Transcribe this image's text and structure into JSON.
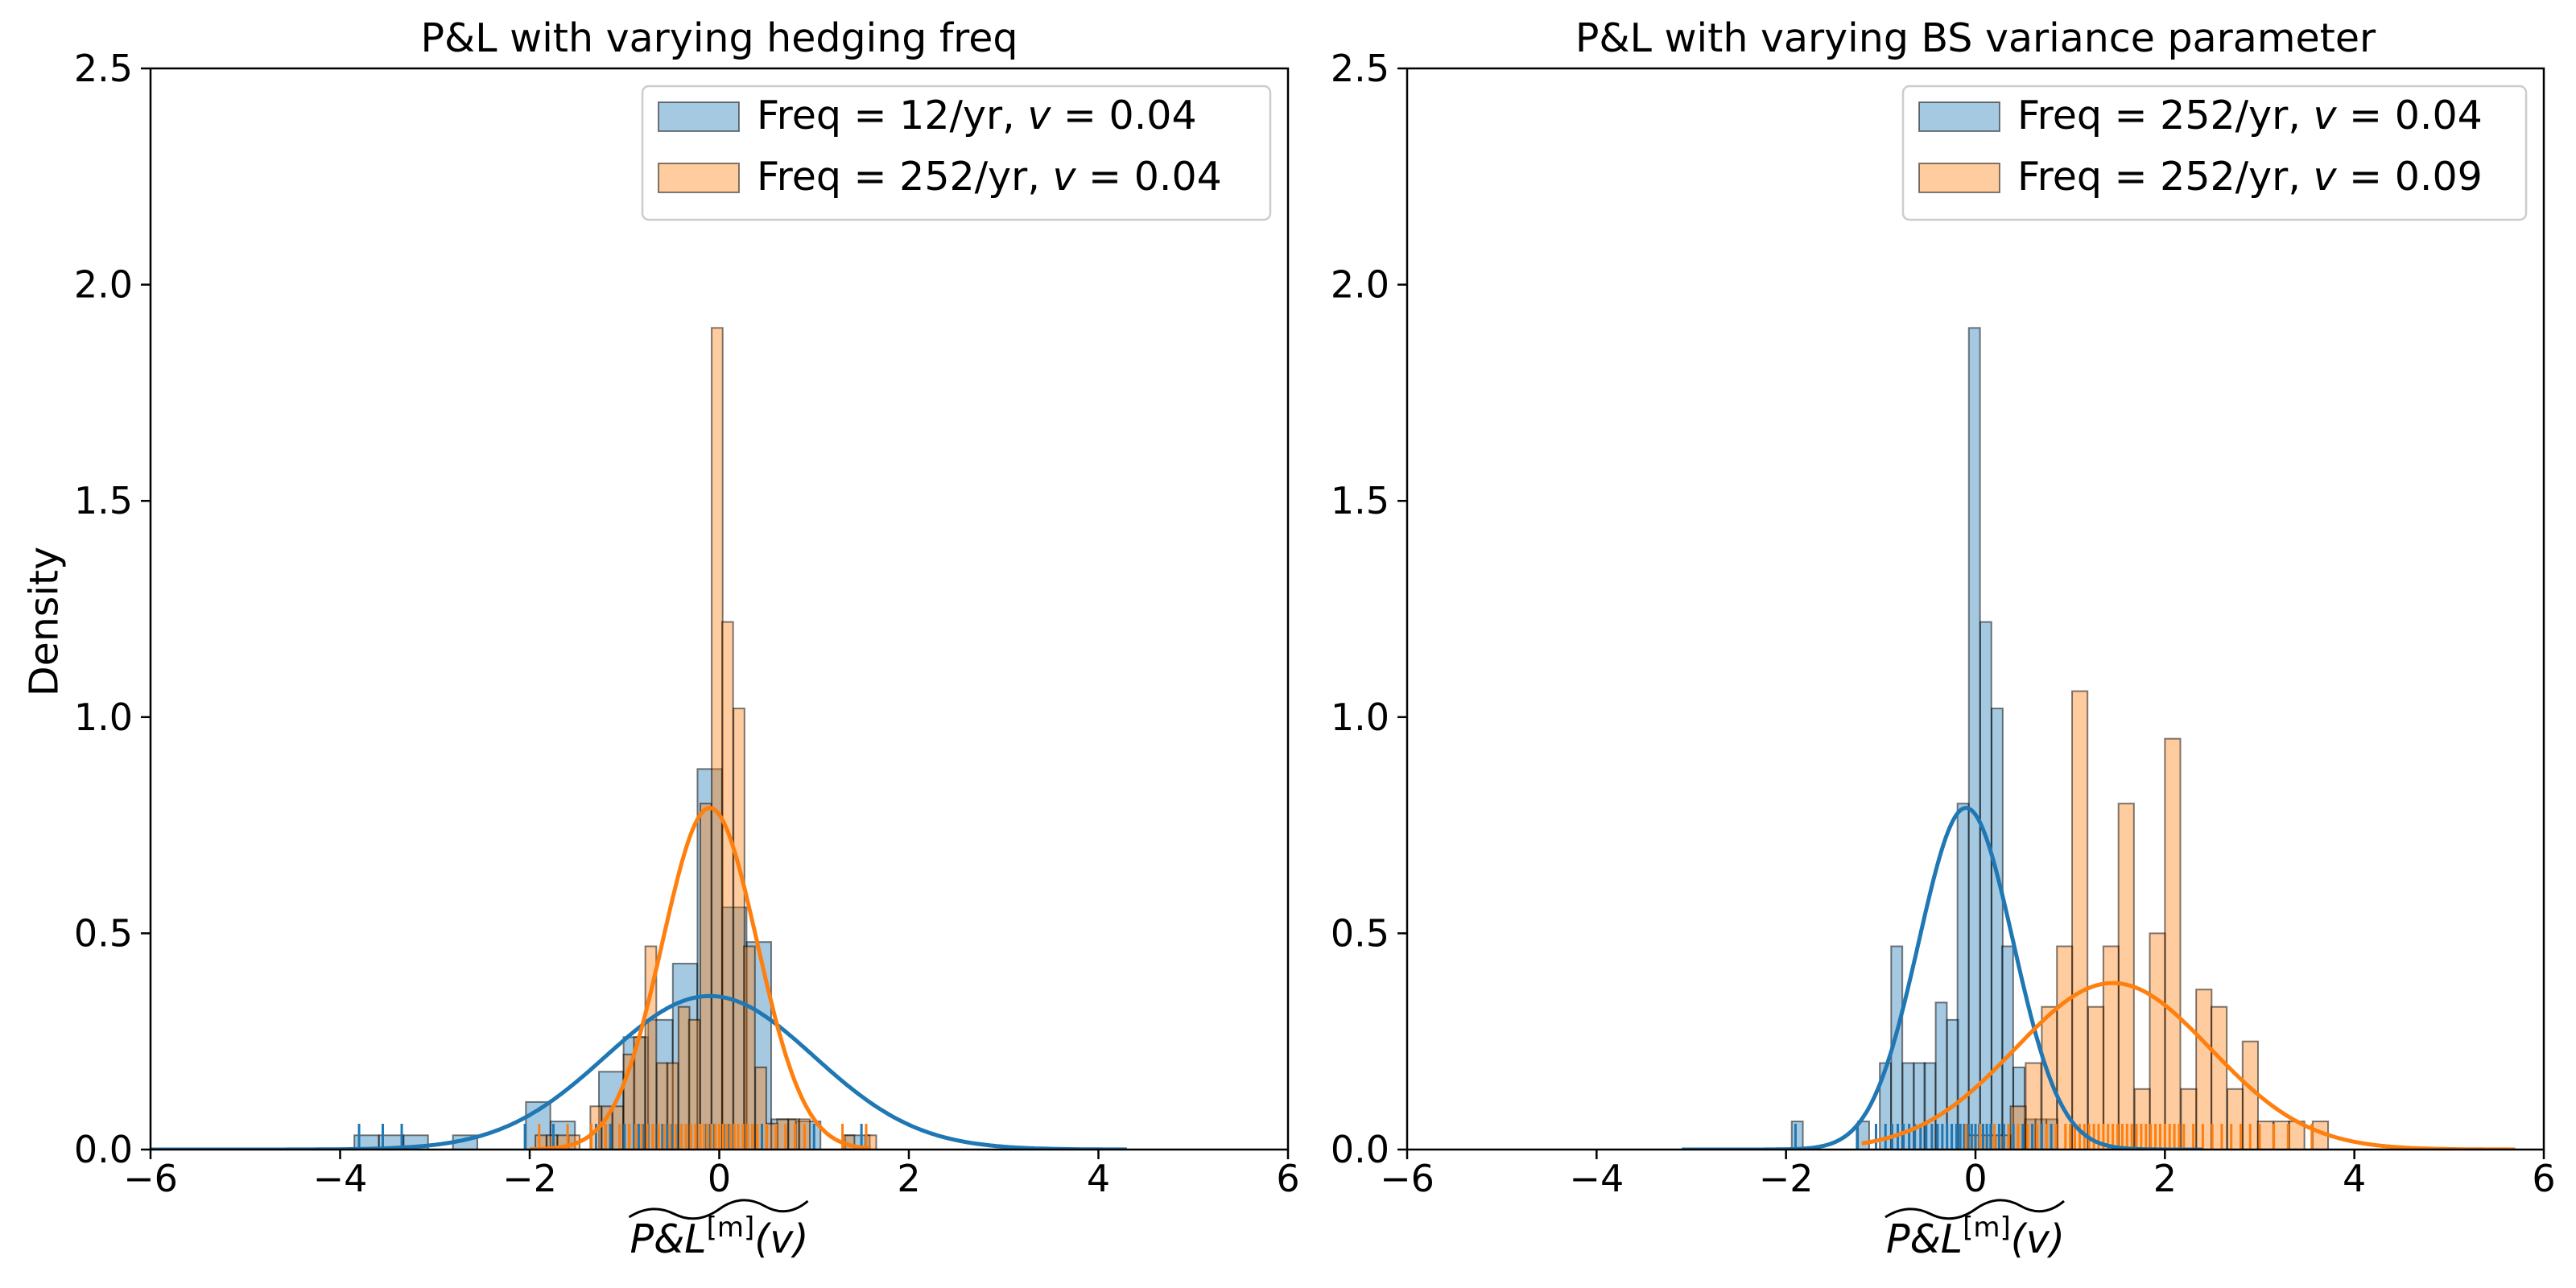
{
  "figure": {
    "ylabel": "Density",
    "xlabel_main": "P&L",
    "xlabel_sup": "[m]",
    "xlabel_arg": "(v)"
  },
  "colors": {
    "blue": "#1f77b4",
    "orange": "#ff7f0e",
    "blue_fill": "#1f77b4",
    "orange_fill": "#ff7f0e"
  },
  "chart_data": [
    {
      "type": "bar",
      "title": "P&L with varying hedging freq",
      "xlabel": "P&L^[m](v)",
      "ylabel": "Density",
      "xlim": [
        -6,
        6
      ],
      "ylim": [
        0,
        2.5
      ],
      "xticks": [
        "−6",
        "−4",
        "−2",
        "0",
        "2",
        "4",
        "6"
      ],
      "xtick_values": [
        -6,
        -4,
        -2,
        0,
        2,
        4,
        6
      ],
      "yticks": [
        "0.0",
        "0.5",
        "1.0",
        "1.5",
        "2.0",
        "2.5"
      ],
      "ytick_values": [
        0,
        0.5,
        1.0,
        1.5,
        2.0,
        2.5
      ],
      "legend": [
        {
          "pre": "Freq = 12/yr, ",
          "var": "v",
          "post": " = 0.04",
          "color": "blue"
        },
        {
          "pre": "Freq = 252/yr, ",
          "var": "v",
          "post": " = 0.04",
          "color": "orange"
        }
      ],
      "series": [
        {
          "name": "Freq = 12/yr, v = 0.04",
          "color": "blue",
          "bin_width": 0.258,
          "bins": [
            [
              -3.85,
              0.033
            ],
            [
              -3.59,
              0.033
            ],
            [
              -3.33,
              0.033
            ],
            [
              -2.81,
              0.033
            ],
            [
              -2.04,
              0.11
            ],
            [
              -1.78,
              0.065
            ],
            [
              -1.27,
              0.18
            ],
            [
              -1.01,
              0.26
            ],
            [
              -0.75,
              0.3
            ],
            [
              -0.49,
              0.43
            ],
            [
              -0.23,
              0.88
            ],
            [
              0.03,
              0.56
            ],
            [
              0.29,
              0.48
            ],
            [
              0.55,
              0.07
            ],
            [
              0.81,
              0.065
            ],
            [
              1.33,
              0.033
            ]
          ],
          "kde": {
            "mean": -0.1,
            "sd": 1.1,
            "x_range": [
              -6,
              4.3
            ],
            "ymax": 0.355
          },
          "rug": [
            -3.8,
            -3.55,
            -3.35,
            -2.05,
            -1.75,
            -1.3,
            -1.2,
            -1.15,
            -1.05,
            -1.0,
            -0.95,
            -0.9,
            -0.85,
            -0.8,
            -0.75,
            -0.7,
            -0.65,
            -0.6,
            -0.55,
            -0.5,
            -0.45,
            -0.4,
            -0.35,
            -0.3,
            -0.25,
            -0.2,
            -0.15,
            -0.1,
            -0.05,
            0.0,
            0.05,
            0.1,
            0.15,
            0.2,
            0.25,
            0.3,
            0.35,
            0.4,
            0.45,
            0.5,
            0.6,
            0.7,
            0.8,
            0.9,
            1.0,
            1.5
          ]
        },
        {
          "name": "Freq = 252/yr, v = 0.04",
          "color": "orange",
          "bin_width": 0.116,
          "bins": [
            [
              -1.94,
              0.033
            ],
            [
              -1.82,
              0.033
            ],
            [
              -1.71,
              0.033
            ],
            [
              -1.59,
              0.033
            ],
            [
              -1.36,
              0.1
            ],
            [
              -1.24,
              0.1
            ],
            [
              -1.13,
              0.1
            ],
            [
              -1.01,
              0.22
            ],
            [
              -0.9,
              0.26
            ],
            [
              -0.78,
              0.47
            ],
            [
              -0.66,
              0.2
            ],
            [
              -0.55,
              0.2
            ],
            [
              -0.43,
              0.33
            ],
            [
              -0.32,
              0.3
            ],
            [
              -0.2,
              0.8
            ],
            [
              -0.08,
              1.9
            ],
            [
              0.03,
              1.22
            ],
            [
              0.15,
              1.02
            ],
            [
              0.26,
              0.47
            ],
            [
              0.38,
              0.19
            ],
            [
              0.5,
              0.06
            ],
            [
              0.61,
              0.07
            ],
            [
              0.73,
              0.07
            ],
            [
              0.84,
              0.07
            ],
            [
              1.31,
              0.033
            ],
            [
              1.54,
              0.033
            ]
          ],
          "kde": {
            "mean": -0.1,
            "sd": 0.5,
            "x_range": [
              -2,
              1.6
            ],
            "ymax": 0.79
          },
          "rug": [
            -1.9,
            -1.6,
            -1.35,
            -1.2,
            -1.05,
            -0.95,
            -0.88,
            -0.82,
            -0.76,
            -0.7,
            -0.64,
            -0.58,
            -0.52,
            -0.46,
            -0.4,
            -0.35,
            -0.3,
            -0.25,
            -0.2,
            -0.16,
            -0.12,
            -0.08,
            -0.04,
            0.0,
            0.04,
            0.08,
            0.12,
            0.16,
            0.2,
            0.25,
            0.3,
            0.35,
            0.4,
            0.5,
            0.6,
            0.7,
            0.8,
            0.9,
            1.3,
            1.55
          ]
        }
      ]
    },
    {
      "type": "bar",
      "title": "P&L with varying BS variance parameter",
      "xlabel": "P&L^[m](v)",
      "ylabel": "",
      "xlim": [
        -6,
        6
      ],
      "ylim": [
        0,
        2.5
      ],
      "xticks": [
        "−6",
        "−4",
        "−2",
        "0",
        "2",
        "4",
        "6"
      ],
      "xtick_values": [
        -6,
        -4,
        -2,
        0,
        2,
        4,
        6
      ],
      "yticks": [
        "0.0",
        "0.5",
        "1.0",
        "1.5",
        "2.0",
        "2.5"
      ],
      "ytick_values": [
        0,
        0.5,
        1.0,
        1.5,
        2.0,
        2.5
      ],
      "legend": [
        {
          "pre": "Freq = 252/yr, ",
          "var": "v",
          "post": " = 0.04",
          "color": "blue"
        },
        {
          "pre": "Freq = 252/yr, ",
          "var": "v",
          "post": " = 0.09",
          "color": "orange"
        }
      ],
      "series": [
        {
          "name": "Freq = 252/yr, v = 0.04",
          "color": "blue",
          "bin_width": 0.118,
          "bins": [
            [
              -1.94,
              0.065
            ],
            [
              -1.24,
              0.065
            ],
            [
              -1.01,
              0.2
            ],
            [
              -0.89,
              0.47
            ],
            [
              -0.77,
              0.2
            ],
            [
              -0.65,
              0.2
            ],
            [
              -0.54,
              0.2
            ],
            [
              -0.42,
              0.34
            ],
            [
              -0.3,
              0.3
            ],
            [
              -0.19,
              0.8
            ],
            [
              -0.07,
              1.9
            ],
            [
              0.05,
              1.22
            ],
            [
              0.17,
              1.02
            ],
            [
              0.28,
              0.47
            ],
            [
              0.4,
              0.19
            ],
            [
              0.52,
              0.07
            ],
            [
              0.63,
              0.07
            ],
            [
              0.75,
              0.07
            ]
          ],
          "kde": {
            "mean": -0.1,
            "sd": 0.5,
            "x_range": [
              -3.1,
              2.4
            ],
            "ymax": 0.79
          },
          "rug": [
            -1.9,
            -1.25,
            -1.05,
            -0.95,
            -0.88,
            -0.82,
            -0.76,
            -0.7,
            -0.64,
            -0.58,
            -0.52,
            -0.46,
            -0.4,
            -0.35,
            -0.3,
            -0.25,
            -0.2,
            -0.16,
            -0.12,
            -0.08,
            -0.04,
            0.0,
            0.04,
            0.08,
            0.12,
            0.16,
            0.2,
            0.25,
            0.3,
            0.35,
            0.4,
            0.5,
            0.6,
            0.7,
            0.8
          ]
        },
        {
          "name": "Freq = 252/yr, v = 0.09",
          "color": "orange",
          "bin_width": 0.163,
          "bins": [
            [
              -0.12,
              0.033
            ],
            [
              0.04,
              0.033
            ],
            [
              0.21,
              0.033
            ],
            [
              0.37,
              0.1
            ],
            [
              0.53,
              0.2
            ],
            [
              0.7,
              0.33
            ],
            [
              0.86,
              0.47
            ],
            [
              1.02,
              1.06
            ],
            [
              1.19,
              0.33
            ],
            [
              1.35,
              0.47
            ],
            [
              1.51,
              0.8
            ],
            [
              1.68,
              0.14
            ],
            [
              1.84,
              0.5
            ],
            [
              2.0,
              0.95
            ],
            [
              2.17,
              0.14
            ],
            [
              2.33,
              0.37
            ],
            [
              2.49,
              0.33
            ],
            [
              2.66,
              0.14
            ],
            [
              2.82,
              0.25
            ],
            [
              2.98,
              0.065
            ],
            [
              3.15,
              0.065
            ],
            [
              3.31,
              0.065
            ],
            [
              3.56,
              0.065
            ]
          ],
          "kde": {
            "mean": 1.45,
            "sd": 1.03,
            "x_range": [
              -1.2,
              5.7
            ],
            "ymax": 0.385
          },
          "rug": [
            -0.1,
            0.05,
            0.2,
            0.35,
            0.45,
            0.55,
            0.65,
            0.75,
            0.85,
            0.95,
            1.0,
            1.05,
            1.1,
            1.15,
            1.2,
            1.25,
            1.3,
            1.35,
            1.4,
            1.45,
            1.5,
            1.55,
            1.6,
            1.65,
            1.7,
            1.75,
            1.8,
            1.85,
            1.9,
            1.95,
            2.0,
            2.05,
            2.1,
            2.15,
            2.2,
            2.3,
            2.4,
            2.5,
            2.6,
            2.7,
            2.8,
            2.9,
            3.0,
            3.15,
            3.3,
            3.55
          ]
        }
      ]
    }
  ]
}
